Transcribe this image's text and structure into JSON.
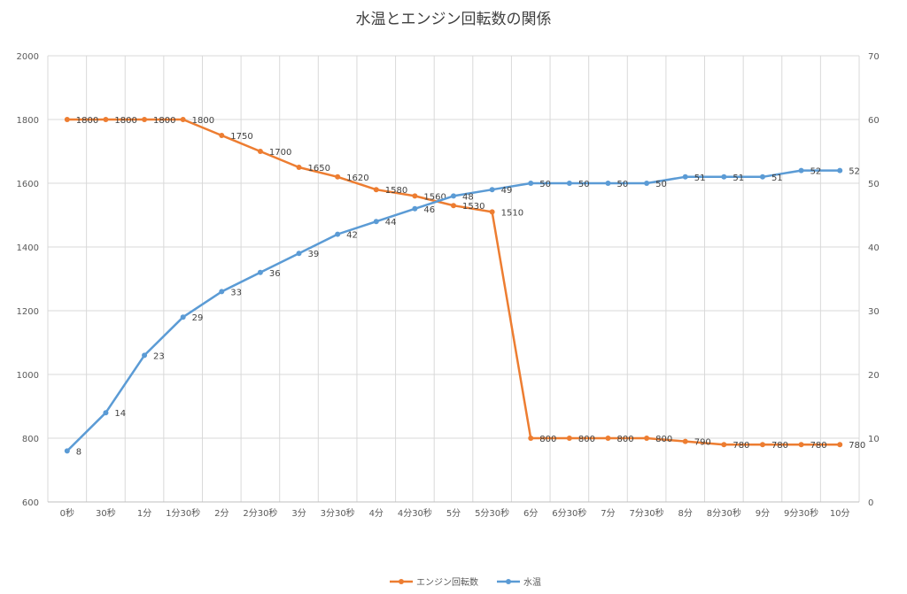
{
  "chart_data": {
    "type": "line",
    "title": "水温とエンジン回転数の関係",
    "categories": [
      "0秒",
      "30秒",
      "1分",
      "1分30秒",
      "2分",
      "2分30秒",
      "3分",
      "3分30秒",
      "4分",
      "4分30秒",
      "5分",
      "5分30秒",
      "6分",
      "6分30秒",
      "7分",
      "7分30秒",
      "8分",
      "8分30秒",
      "9分",
      "9分30秒",
      "10分"
    ],
    "series": [
      {
        "name": "エンジン回転数",
        "axis": "left",
        "color": "#ED7D31",
        "values": [
          1800,
          1800,
          1800,
          1800,
          1750,
          1700,
          1650,
          1620,
          1580,
          1560,
          1530,
          1510,
          800,
          800,
          800,
          800,
          790,
          780,
          780,
          780,
          780
        ]
      },
      {
        "name": "水温",
        "axis": "right",
        "color": "#5B9BD5",
        "values": [
          8,
          14,
          23,
          29,
          33,
          36,
          39,
          42,
          44,
          46,
          48,
          49,
          50,
          50,
          50,
          50,
          51,
          51,
          51,
          52,
          52
        ]
      }
    ],
    "y_left": {
      "min": 600,
      "max": 2000,
      "ticks": [
        "600",
        "800",
        "1000",
        "1200",
        "1400",
        "1600",
        "1800",
        "2000"
      ]
    },
    "y_right": {
      "min": 0,
      "max": 70,
      "ticks": [
        "0",
        "10",
        "20",
        "30",
        "40",
        "50",
        "60",
        "70"
      ]
    },
    "grid": true,
    "legend_position": "bottom",
    "gridline_color": "#D9D9D9"
  }
}
